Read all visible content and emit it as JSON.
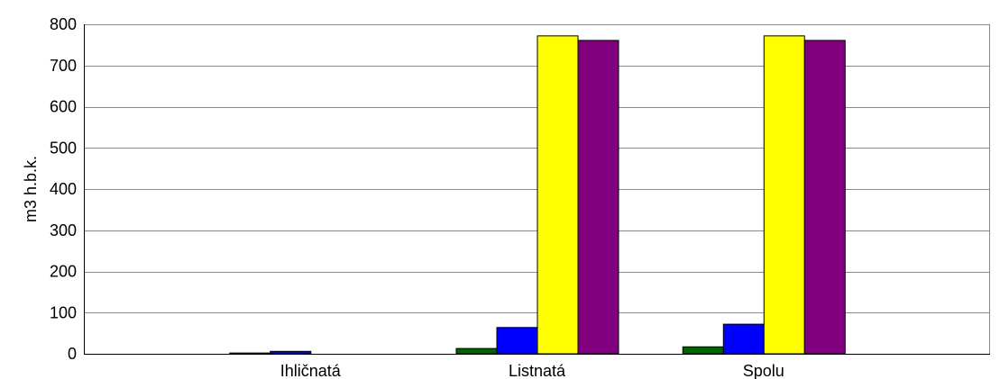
{
  "chart_data": {
    "type": "bar",
    "title": "",
    "xlabel": "",
    "ylabel": "m3 h.b.k.",
    "categories": [
      "Ihličnatá",
      "Listnatá",
      "Spolu"
    ],
    "ylim": [
      0,
      800
    ],
    "yticks": [
      0,
      100,
      200,
      300,
      400,
      500,
      600,
      700,
      800
    ],
    "grid": true,
    "legend": "none",
    "series": [
      {
        "color": "#006400",
        "values": [
          3,
          14,
          18
        ]
      },
      {
        "color": "#0000ff",
        "values": [
          7,
          65,
          73
        ]
      },
      {
        "color": "#ffff00",
        "values": [
          0,
          773,
          773
        ]
      },
      {
        "color": "#800080",
        "values": [
          0,
          762,
          762
        ]
      }
    ]
  }
}
